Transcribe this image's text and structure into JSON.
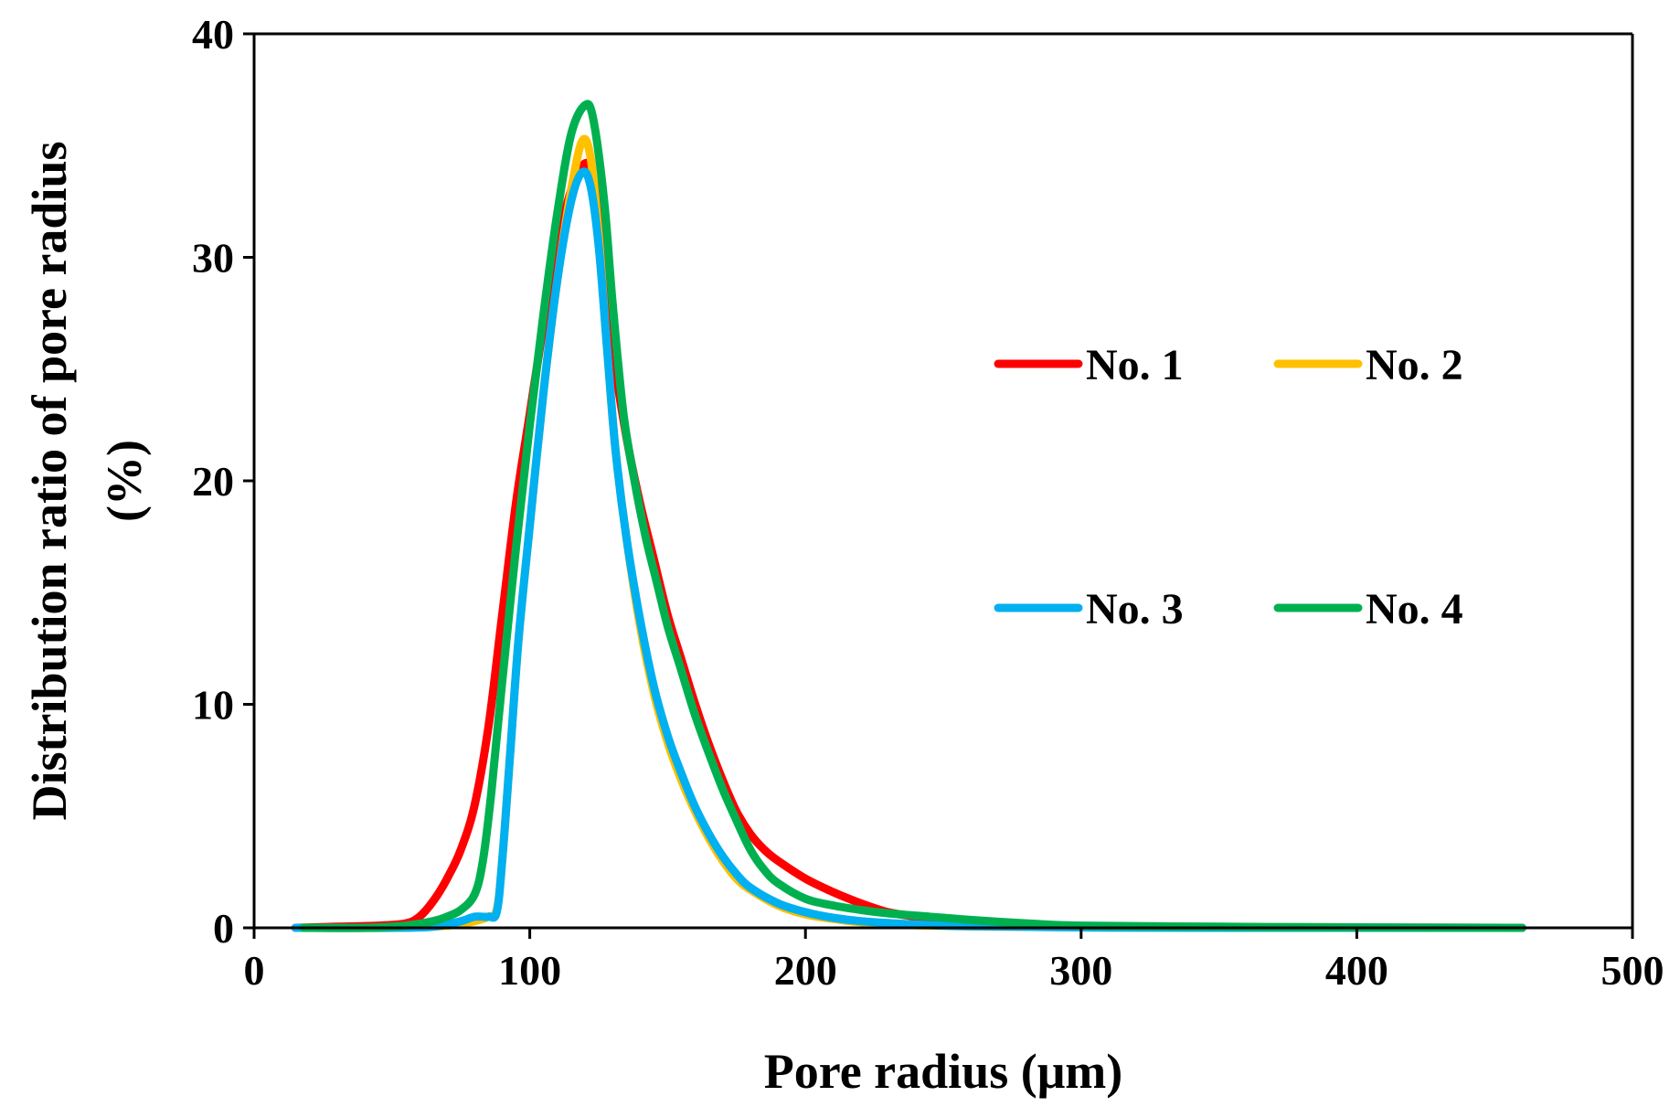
{
  "chart_data": {
    "type": "line",
    "title": "",
    "xlabel": "Pore radius (μm)",
    "ylabel_line1": "Distribution ratio of pore radius",
    "ylabel_line2": "(%)",
    "xlim": [
      0,
      500
    ],
    "ylim": [
      0,
      40
    ],
    "xticks": [
      0,
      100,
      200,
      300,
      400,
      500
    ],
    "yticks": [
      0,
      10,
      20,
      30,
      40
    ],
    "grid": false,
    "legend_position": "center-right",
    "series": [
      {
        "name": "No. 1",
        "color": "#ff0000",
        "points": [
          [
            15,
            0
          ],
          [
            30,
            0.05
          ],
          [
            45,
            0.1
          ],
          [
            55,
            0.2
          ],
          [
            60,
            0.5
          ],
          [
            65,
            1.2
          ],
          [
            70,
            2.2
          ],
          [
            75,
            3.5
          ],
          [
            80,
            5.5
          ],
          [
            85,
            9
          ],
          [
            90,
            14
          ],
          [
            95,
            19
          ],
          [
            100,
            23
          ],
          [
            105,
            27
          ],
          [
            110,
            30.5
          ],
          [
            115,
            33
          ],
          [
            120,
            34.2
          ],
          [
            123,
            33.5
          ],
          [
            127,
            30
          ],
          [
            130,
            26
          ],
          [
            135,
            22
          ],
          [
            140,
            19
          ],
          [
            145,
            16.5
          ],
          [
            150,
            14
          ],
          [
            155,
            12
          ],
          [
            160,
            10
          ],
          [
            165,
            8.2
          ],
          [
            170,
            6.6
          ],
          [
            175,
            5.2
          ],
          [
            180,
            4.2
          ],
          [
            185,
            3.5
          ],
          [
            190,
            3
          ],
          [
            200,
            2.2
          ],
          [
            210,
            1.6
          ],
          [
            220,
            1.1
          ],
          [
            230,
            0.7
          ],
          [
            240,
            0.5
          ],
          [
            250,
            0.35
          ],
          [
            260,
            0.25
          ],
          [
            280,
            0.15
          ],
          [
            300,
            0.08
          ],
          [
            350,
            0.03
          ],
          [
            400,
            0.01
          ],
          [
            460,
            0
          ]
        ]
      },
      {
        "name": "No. 2",
        "color": "#ffc000",
        "points": [
          [
            15,
            0
          ],
          [
            50,
            0
          ],
          [
            70,
            0.1
          ],
          [
            80,
            0.3
          ],
          [
            85,
            0.5
          ],
          [
            88,
            0.8
          ],
          [
            90,
            3
          ],
          [
            93,
            8
          ],
          [
            96,
            13
          ],
          [
            100,
            18
          ],
          [
            105,
            24
          ],
          [
            110,
            29
          ],
          [
            115,
            33
          ],
          [
            119,
            35.2
          ],
          [
            122,
            34.5
          ],
          [
            125,
            31
          ],
          [
            128,
            26
          ],
          [
            131,
            21.5
          ],
          [
            135,
            17.5
          ],
          [
            140,
            13.5
          ],
          [
            145,
            10.5
          ],
          [
            150,
            8.3
          ],
          [
            155,
            6.6
          ],
          [
            160,
            5.2
          ],
          [
            165,
            4
          ],
          [
            170,
            3
          ],
          [
            175,
            2.2
          ],
          [
            180,
            1.7
          ],
          [
            190,
            1
          ],
          [
            200,
            0.6
          ],
          [
            210,
            0.4
          ],
          [
            220,
            0.25
          ],
          [
            240,
            0.12
          ],
          [
            260,
            0.06
          ],
          [
            300,
            0.02
          ],
          [
            350,
            0
          ],
          [
            460,
            0
          ]
        ]
      },
      {
        "name": "No. 3",
        "color": "#00b0f0",
        "points": [
          [
            15,
            0
          ],
          [
            50,
            0
          ],
          [
            65,
            0.05
          ],
          [
            75,
            0.3
          ],
          [
            80,
            0.5
          ],
          [
            85,
            0.5
          ],
          [
            88,
            0.7
          ],
          [
            90,
            3
          ],
          [
            93,
            8
          ],
          [
            96,
            13
          ],
          [
            100,
            18
          ],
          [
            105,
            24
          ],
          [
            110,
            29
          ],
          [
            115,
            32.5
          ],
          [
            119,
            33.8
          ],
          [
            122,
            33.2
          ],
          [
            125,
            30.5
          ],
          [
            128,
            26
          ],
          [
            131,
            21.5
          ],
          [
            135,
            17.5
          ],
          [
            140,
            13.8
          ],
          [
            145,
            10.8
          ],
          [
            150,
            8.6
          ],
          [
            155,
            6.9
          ],
          [
            160,
            5.4
          ],
          [
            165,
            4.2
          ],
          [
            170,
            3.2
          ],
          [
            175,
            2.4
          ],
          [
            180,
            1.8
          ],
          [
            190,
            1.1
          ],
          [
            200,
            0.7
          ],
          [
            210,
            0.45
          ],
          [
            220,
            0.3
          ],
          [
            240,
            0.15
          ],
          [
            260,
            0.07
          ],
          [
            300,
            0.02
          ],
          [
            350,
            0
          ],
          [
            460,
            0
          ]
        ]
      },
      {
        "name": "No. 4",
        "color": "#00b050",
        "points": [
          [
            18,
            0
          ],
          [
            40,
            0
          ],
          [
            55,
            0.1
          ],
          [
            65,
            0.3
          ],
          [
            70,
            0.5
          ],
          [
            75,
            0.8
          ],
          [
            80,
            1.5
          ],
          [
            83,
            3
          ],
          [
            86,
            6
          ],
          [
            90,
            11
          ],
          [
            95,
            17
          ],
          [
            100,
            22.5
          ],
          [
            105,
            27.5
          ],
          [
            110,
            32
          ],
          [
            115,
            35.5
          ],
          [
            120,
            36.8
          ],
          [
            123,
            36.2
          ],
          [
            127,
            32.5
          ],
          [
            130,
            28
          ],
          [
            134,
            23
          ],
          [
            138,
            20
          ],
          [
            142,
            17.5
          ],
          [
            146,
            15.5
          ],
          [
            150,
            13.5
          ],
          [
            155,
            11.5
          ],
          [
            160,
            9.5
          ],
          [
            165,
            7.8
          ],
          [
            170,
            6.2
          ],
          [
            175,
            4.8
          ],
          [
            180,
            3.5
          ],
          [
            185,
            2.6
          ],
          [
            190,
            2
          ],
          [
            200,
            1.3
          ],
          [
            210,
            1
          ],
          [
            220,
            0.8
          ],
          [
            230,
            0.65
          ],
          [
            240,
            0.55
          ],
          [
            250,
            0.45
          ],
          [
            260,
            0.35
          ],
          [
            280,
            0.2
          ],
          [
            300,
            0.1
          ],
          [
            350,
            0.05
          ],
          [
            400,
            0.02
          ],
          [
            460,
            0
          ]
        ]
      }
    ]
  }
}
